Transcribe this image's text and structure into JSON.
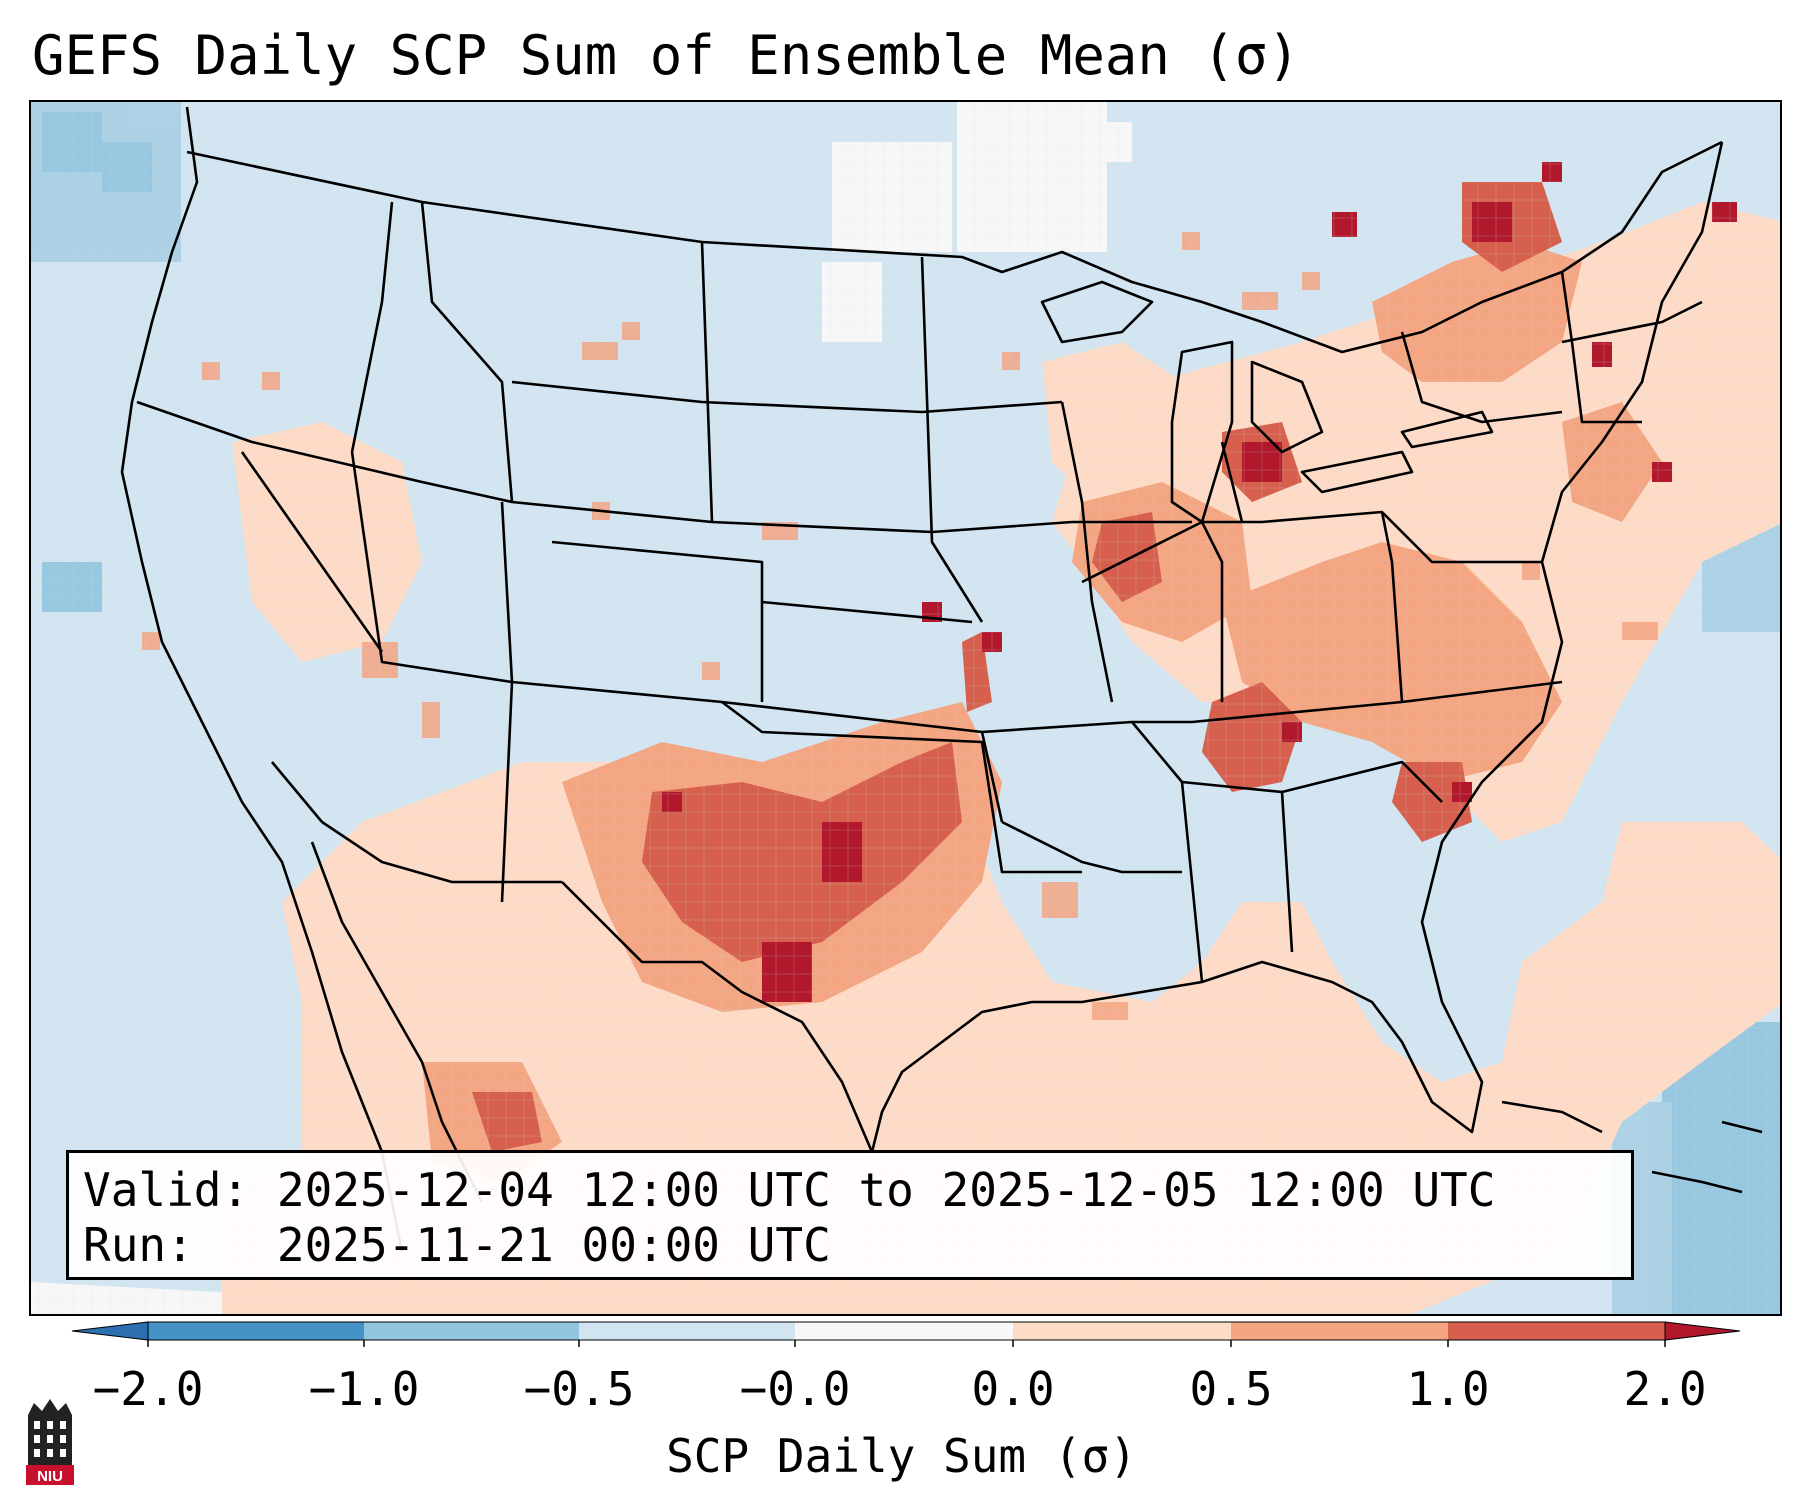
{
  "title": "GEFS Daily SCP Sum of Ensemble Mean (σ)",
  "info": {
    "valid_label": "Valid:",
    "valid_value": "2025-12-04 12:00 UTC to 2025-12-05 12:00 UTC",
    "run_label": "Run:",
    "run_value": "2025-11-21 00:00 UTC"
  },
  "colorbar": {
    "label": "SCP Daily Sum (σ)",
    "ticks": [
      "−2.0",
      "−1.0",
      "−0.5",
      "−0.0",
      "0.0",
      "0.5",
      "1.0",
      "2.0"
    ],
    "bins": [
      {
        "range": "< -2.0",
        "color": "#2c70b0"
      },
      {
        "range": "-2.0 to -1.0",
        "color": "#4592c6"
      },
      {
        "range": "-1.0 to -0.5",
        "color": "#92c5de"
      },
      {
        "range": "-0.5 to -0.0",
        "color": "#d1e5f0"
      },
      {
        "range": "-0.0 to 0.0",
        "color": "#f7f7f7"
      },
      {
        "range": "0.0 to 0.5",
        "color": "#fddbc7"
      },
      {
        "range": "0.5 to 1.0",
        "color": "#f4a582"
      },
      {
        "range": "1.0 to 2.0",
        "color": "#d6604d"
      },
      {
        "range": "> 2.0",
        "color": "#b2182b"
      }
    ]
  },
  "logo": {
    "text": "NIU"
  }
}
